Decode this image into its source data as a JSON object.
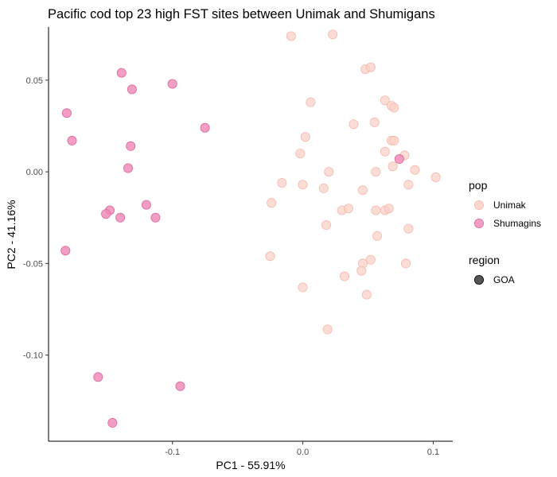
{
  "chart_data": {
    "type": "scatter",
    "title": "Pacific cod top 23 high FST sites between Unimak and Shumigans",
    "xlabel": "PC1 - 55.91%",
    "ylabel": "PC2 - 41.16%",
    "xlim": [
      -0.195,
      0.115
    ],
    "ylim": [
      -0.147,
      0.079
    ],
    "xticks": [
      -0.1,
      0.0,
      0.1
    ],
    "xtick_labels": [
      "-0.1",
      "0.0",
      "0.1"
    ],
    "yticks": [
      0.05,
      0.0,
      -0.05,
      -0.1
    ],
    "ytick_labels": [
      "0.05",
      "0.00",
      "-0.05",
      "-0.10"
    ],
    "grid": false,
    "legend_placement": "right",
    "legends": [
      {
        "title": "pop",
        "items": [
          {
            "label": "Unimak",
            "color": "#fbd0c6"
          },
          {
            "label": "Shumagins",
            "color": "#f08cba"
          }
        ]
      },
      {
        "title": "region",
        "items": [
          {
            "label": "GOA",
            "color": "#555555"
          }
        ]
      }
    ],
    "series": [
      {
        "name": "Unimak",
        "color": "#fbd0c6",
        "points": [
          [
            -0.009,
            0.074
          ],
          [
            0.023,
            0.075
          ],
          [
            0.048,
            0.056
          ],
          [
            0.052,
            0.057
          ],
          [
            0.006,
            0.038
          ],
          [
            0.063,
            0.039
          ],
          [
            0.068,
            0.036
          ],
          [
            0.07,
            0.035
          ],
          [
            0.039,
            0.026
          ],
          [
            0.055,
            0.027
          ],
          [
            0.002,
            0.019
          ],
          [
            0.068,
            0.017
          ],
          [
            0.07,
            0.017
          ],
          [
            0.063,
            0.011
          ],
          [
            -0.002,
            0.01
          ],
          [
            0.078,
            0.009
          ],
          [
            0.069,
            0.003
          ],
          [
            0.086,
            0.001
          ],
          [
            0.02,
            0.0
          ],
          [
            0.056,
            -0.0
          ],
          [
            0.102,
            -0.003
          ],
          [
            -0.016,
            -0.006
          ],
          [
            0.0,
            -0.007
          ],
          [
            0.081,
            -0.007
          ],
          [
            0.016,
            -0.009
          ],
          [
            0.046,
            -0.01
          ],
          [
            -0.024,
            -0.017
          ],
          [
            0.03,
            -0.021
          ],
          [
            0.035,
            -0.02
          ],
          [
            0.056,
            -0.021
          ],
          [
            0.063,
            -0.021
          ],
          [
            0.066,
            -0.02
          ],
          [
            0.018,
            -0.029
          ],
          [
            0.081,
            -0.031
          ],
          [
            0.057,
            -0.035
          ],
          [
            -0.025,
            -0.046
          ],
          [
            0.052,
            -0.048
          ],
          [
            0.046,
            -0.05
          ],
          [
            0.079,
            -0.05
          ],
          [
            0.045,
            -0.054
          ],
          [
            0.032,
            -0.057
          ],
          [
            0.0,
            -0.063
          ],
          [
            0.049,
            -0.067
          ],
          [
            0.019,
            -0.086
          ]
        ]
      },
      {
        "name": "Shumagins",
        "color": "#f08cba",
        "points": [
          [
            -0.139,
            0.054
          ],
          [
            -0.1,
            0.048
          ],
          [
            -0.131,
            0.045
          ],
          [
            -0.181,
            0.032
          ],
          [
            -0.177,
            0.017
          ],
          [
            -0.075,
            0.024
          ],
          [
            -0.132,
            0.014
          ],
          [
            -0.134,
            0.002
          ],
          [
            0.074,
            0.007
          ],
          [
            -0.148,
            -0.021
          ],
          [
            -0.151,
            -0.023
          ],
          [
            -0.12,
            -0.018
          ],
          [
            -0.14,
            -0.025
          ],
          [
            -0.113,
            -0.025
          ],
          [
            -0.182,
            -0.043
          ],
          [
            -0.157,
            -0.112
          ],
          [
            -0.094,
            -0.117
          ],
          [
            -0.146,
            -0.137
          ]
        ]
      }
    ]
  }
}
